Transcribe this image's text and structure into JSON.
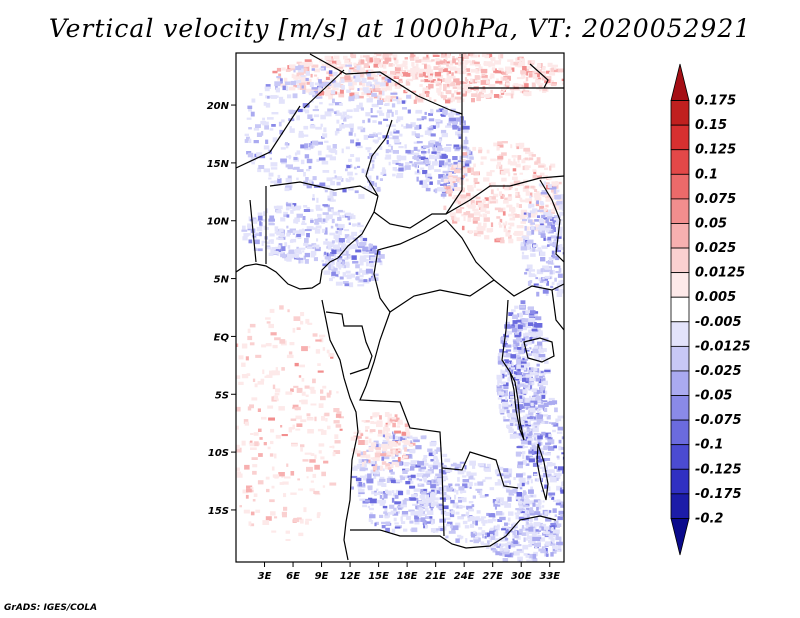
{
  "title": "Vertical velocity [m/s] at 1000hPa, VT: 2020052921",
  "footer": "GrADS: IGES/COLA",
  "map": {
    "lon_range": [
      0,
      34.5
    ],
    "lat_range": [
      -19.5,
      24.5
    ],
    "x_ticks": [
      {
        "value": 3,
        "label": "3E"
      },
      {
        "value": 6,
        "label": "6E"
      },
      {
        "value": 9,
        "label": "9E"
      },
      {
        "value": 12,
        "label": "12E"
      },
      {
        "value": 15,
        "label": "15E"
      },
      {
        "value": 18,
        "label": "18E"
      },
      {
        "value": 21,
        "label": "21E"
      },
      {
        "value": 24,
        "label": "24E"
      },
      {
        "value": 27,
        "label": "27E"
      },
      {
        "value": 30,
        "label": "30E"
      },
      {
        "value": 33,
        "label": "33E"
      }
    ],
    "y_ticks": [
      {
        "value": 20,
        "label": "20N"
      },
      {
        "value": 15,
        "label": "15N"
      },
      {
        "value": 10,
        "label": "10N"
      },
      {
        "value": 5,
        "label": "5N"
      },
      {
        "value": 0,
        "label": "EQ"
      },
      {
        "value": -5,
        "label": "5S"
      },
      {
        "value": -10,
        "label": "10S"
      },
      {
        "value": -15,
        "label": "15S"
      }
    ]
  },
  "colorbar": {
    "labels": [
      "0.175",
      "0.15",
      "0.125",
      "0.1",
      "0.075",
      "0.05",
      "0.025",
      "0.0125",
      "0.005",
      "-0.005",
      "-0.0125",
      "-0.025",
      "-0.05",
      "-0.075",
      "-0.1",
      "-0.125",
      "-0.175",
      "-0.2"
    ],
    "colors": [
      "#a50f15",
      "#c0201f",
      "#d73030",
      "#e34848",
      "#ec6a6a",
      "#f28e8e",
      "#f7b0b0",
      "#fad0d0",
      "#fde9e9",
      "#ffffff",
      "#e3e3fb",
      "#c8c8f6",
      "#aaaaf0",
      "#8a8ae8",
      "#6b6bde",
      "#4b4bd2",
      "#3030c2",
      "#1c1ca8",
      "#0a0a8c"
    ]
  }
}
